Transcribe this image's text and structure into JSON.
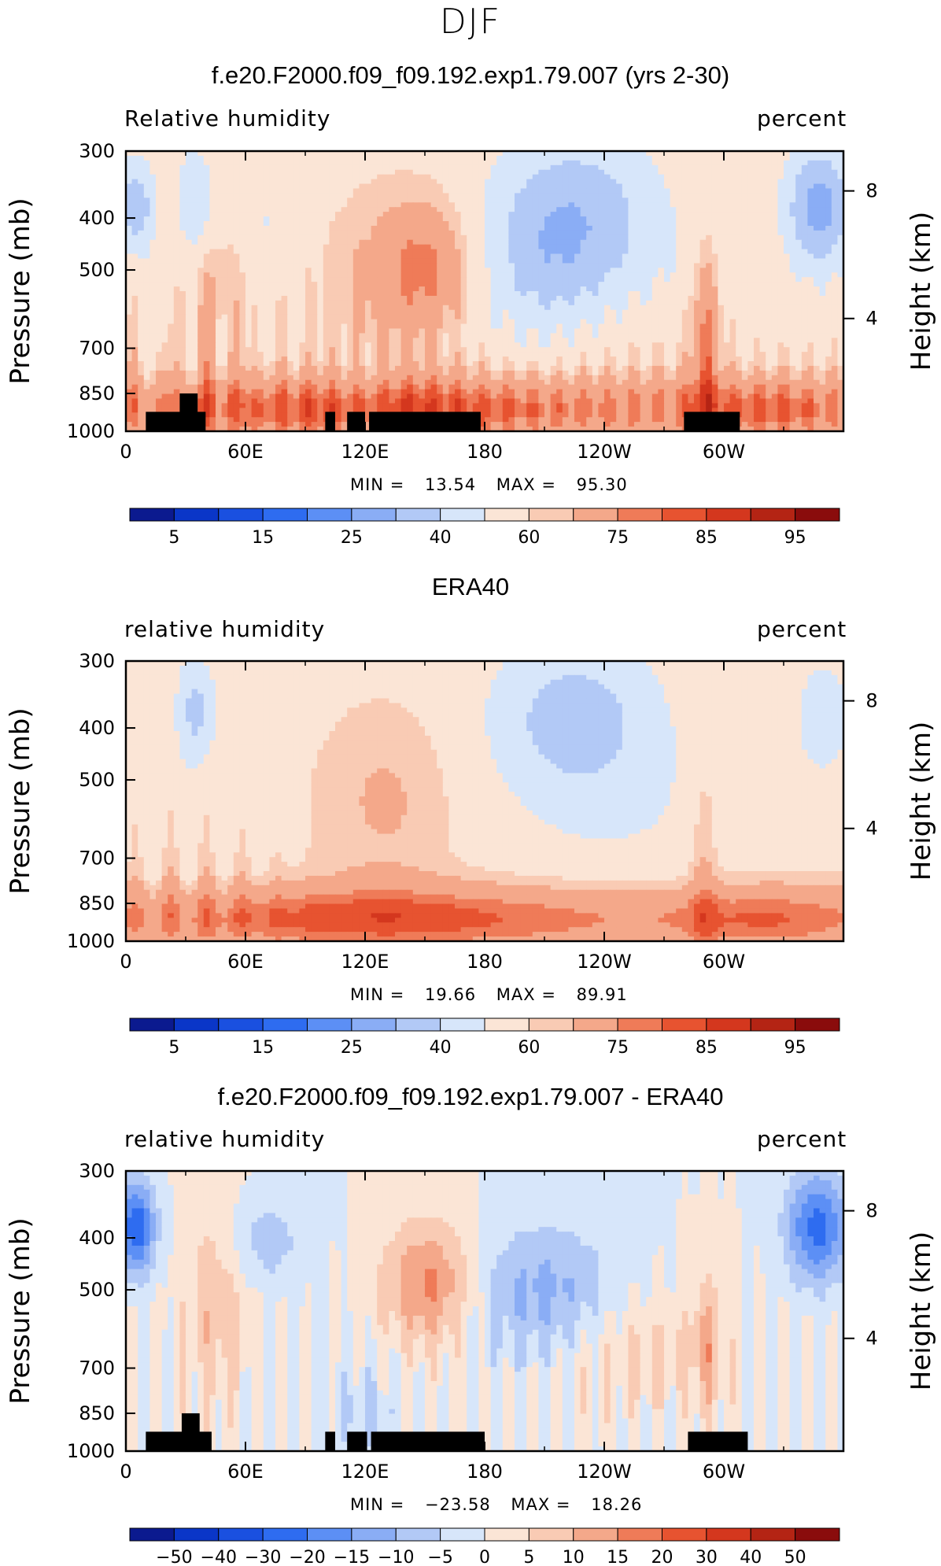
{
  "page": {
    "title": "DJF"
  },
  "colors": {
    "abs_scale": [
      "#0b1a8f",
      "#0a36c8",
      "#1a50e0",
      "#2e6cf0",
      "#5c8ff5",
      "#8aadf5",
      "#b2c9f6",
      "#d7e6fa",
      "#fbe5d6",
      "#f9cbb4",
      "#f4a88a",
      "#ef7b58",
      "#e75330",
      "#d4371e",
      "#b42414",
      "#8a0c0c"
    ],
    "diff_scale": [
      "#0b1a8f",
      "#0a36c8",
      "#1a50e0",
      "#2e6cf0",
      "#5c8ff5",
      "#8aadf5",
      "#b2c9f6",
      "#d7e6fa",
      "#fbe5d6",
      "#f9cbb4",
      "#f4a88a",
      "#ef7b58",
      "#e75330",
      "#d4371e",
      "#b42414",
      "#8a0c0c"
    ],
    "topography": "#000000"
  },
  "chart_data": [
    {
      "type": "heatmap",
      "title": "f.e20.F2000.f09_f09.192.exp1.79.007 (yrs 2-30)",
      "left_label": "Relative humidity",
      "right_label": "percent",
      "ylabel": "Pressure (mb)",
      "y2label": "Height (km)",
      "x_ticks": [
        "0",
        "60E",
        "120E",
        "180",
        "120W",
        "60W"
      ],
      "x_lon": [
        0,
        60,
        120,
        180,
        240,
        300
      ],
      "xlim": [
        0,
        360
      ],
      "y_ticks": [
        "300",
        "400",
        "500",
        "700",
        "850",
        "1000"
      ],
      "y_values": [
        300,
        400,
        500,
        700,
        850,
        1000
      ],
      "ylim": [
        1000,
        300
      ],
      "y2_ticks": [
        "8",
        "4"
      ],
      "y2_pressure": [
        356,
        616
      ],
      "min_label": "MIN =",
      "min": "13.54",
      "max_label": "MAX =",
      "max": "95.30",
      "colorbar_labels": [
        "5",
        "15",
        "25",
        "40",
        "60",
        "75",
        "85",
        "95"
      ],
      "field": "abs",
      "topography": [
        [
          10,
          40,
          920
        ],
        [
          27,
          36,
          850
        ],
        [
          100,
          105,
          920
        ],
        [
          111,
          120,
          920
        ],
        [
          122,
          178,
          920
        ],
        [
          280,
          308,
          920
        ]
      ]
    },
    {
      "type": "heatmap",
      "title": "ERA40",
      "left_label": "relative humidity",
      "right_label": "percent",
      "ylabel": "Pressure (mb)",
      "y2label": "Height (km)",
      "x_ticks": [
        "0",
        "60E",
        "120E",
        "180",
        "120W",
        "60W"
      ],
      "x_lon": [
        0,
        60,
        120,
        180,
        240,
        300
      ],
      "xlim": [
        0,
        360
      ],
      "y_ticks": [
        "300",
        "400",
        "500",
        "700",
        "850",
        "1000"
      ],
      "y_values": [
        300,
        400,
        500,
        700,
        850,
        1000
      ],
      "ylim": [
        1000,
        300
      ],
      "y2_ticks": [
        "8",
        "4"
      ],
      "y2_pressure": [
        356,
        616
      ],
      "min_label": "MIN =",
      "min": "19.66",
      "max_label": "MAX =",
      "max": "89.91",
      "colorbar_labels": [
        "5",
        "15",
        "25",
        "40",
        "60",
        "75",
        "85",
        "95"
      ],
      "field": "obs",
      "topography": []
    },
    {
      "type": "heatmap",
      "title": "f.e20.F2000.f09_f09.192.exp1.79.007 - ERA40",
      "left_label": "relative humidity",
      "right_label": "percent",
      "ylabel": "Pressure (mb)",
      "y2label": "Height (km)",
      "x_ticks": [
        "0",
        "60E",
        "120E",
        "180",
        "120W",
        "60W"
      ],
      "x_lon": [
        0,
        60,
        120,
        180,
        240,
        300
      ],
      "xlim": [
        0,
        360
      ],
      "y_ticks": [
        "300",
        "400",
        "500",
        "700",
        "850",
        "1000"
      ],
      "y_values": [
        300,
        400,
        500,
        700,
        850,
        1000
      ],
      "ylim": [
        1000,
        300
      ],
      "y2_ticks": [
        "8",
        "4"
      ],
      "y2_pressure": [
        356,
        616
      ],
      "min_label": "MIN =",
      "min": "−23.58",
      "max_label": "MAX =",
      "max": "18.26",
      "colorbar_labels": [
        "−50",
        "−40",
        "−30",
        "−20",
        "−15",
        "−10",
        "−5",
        "0",
        "5",
        "10",
        "15",
        "20",
        "30",
        "40",
        "50"
      ],
      "field": "diff",
      "topography": [
        [
          10,
          43,
          920
        ],
        [
          28,
          37,
          850
        ],
        [
          100,
          105,
          920
        ],
        [
          111,
          121,
          920
        ],
        [
          123,
          180,
          920
        ],
        [
          282,
          312,
          920
        ]
      ]
    }
  ]
}
